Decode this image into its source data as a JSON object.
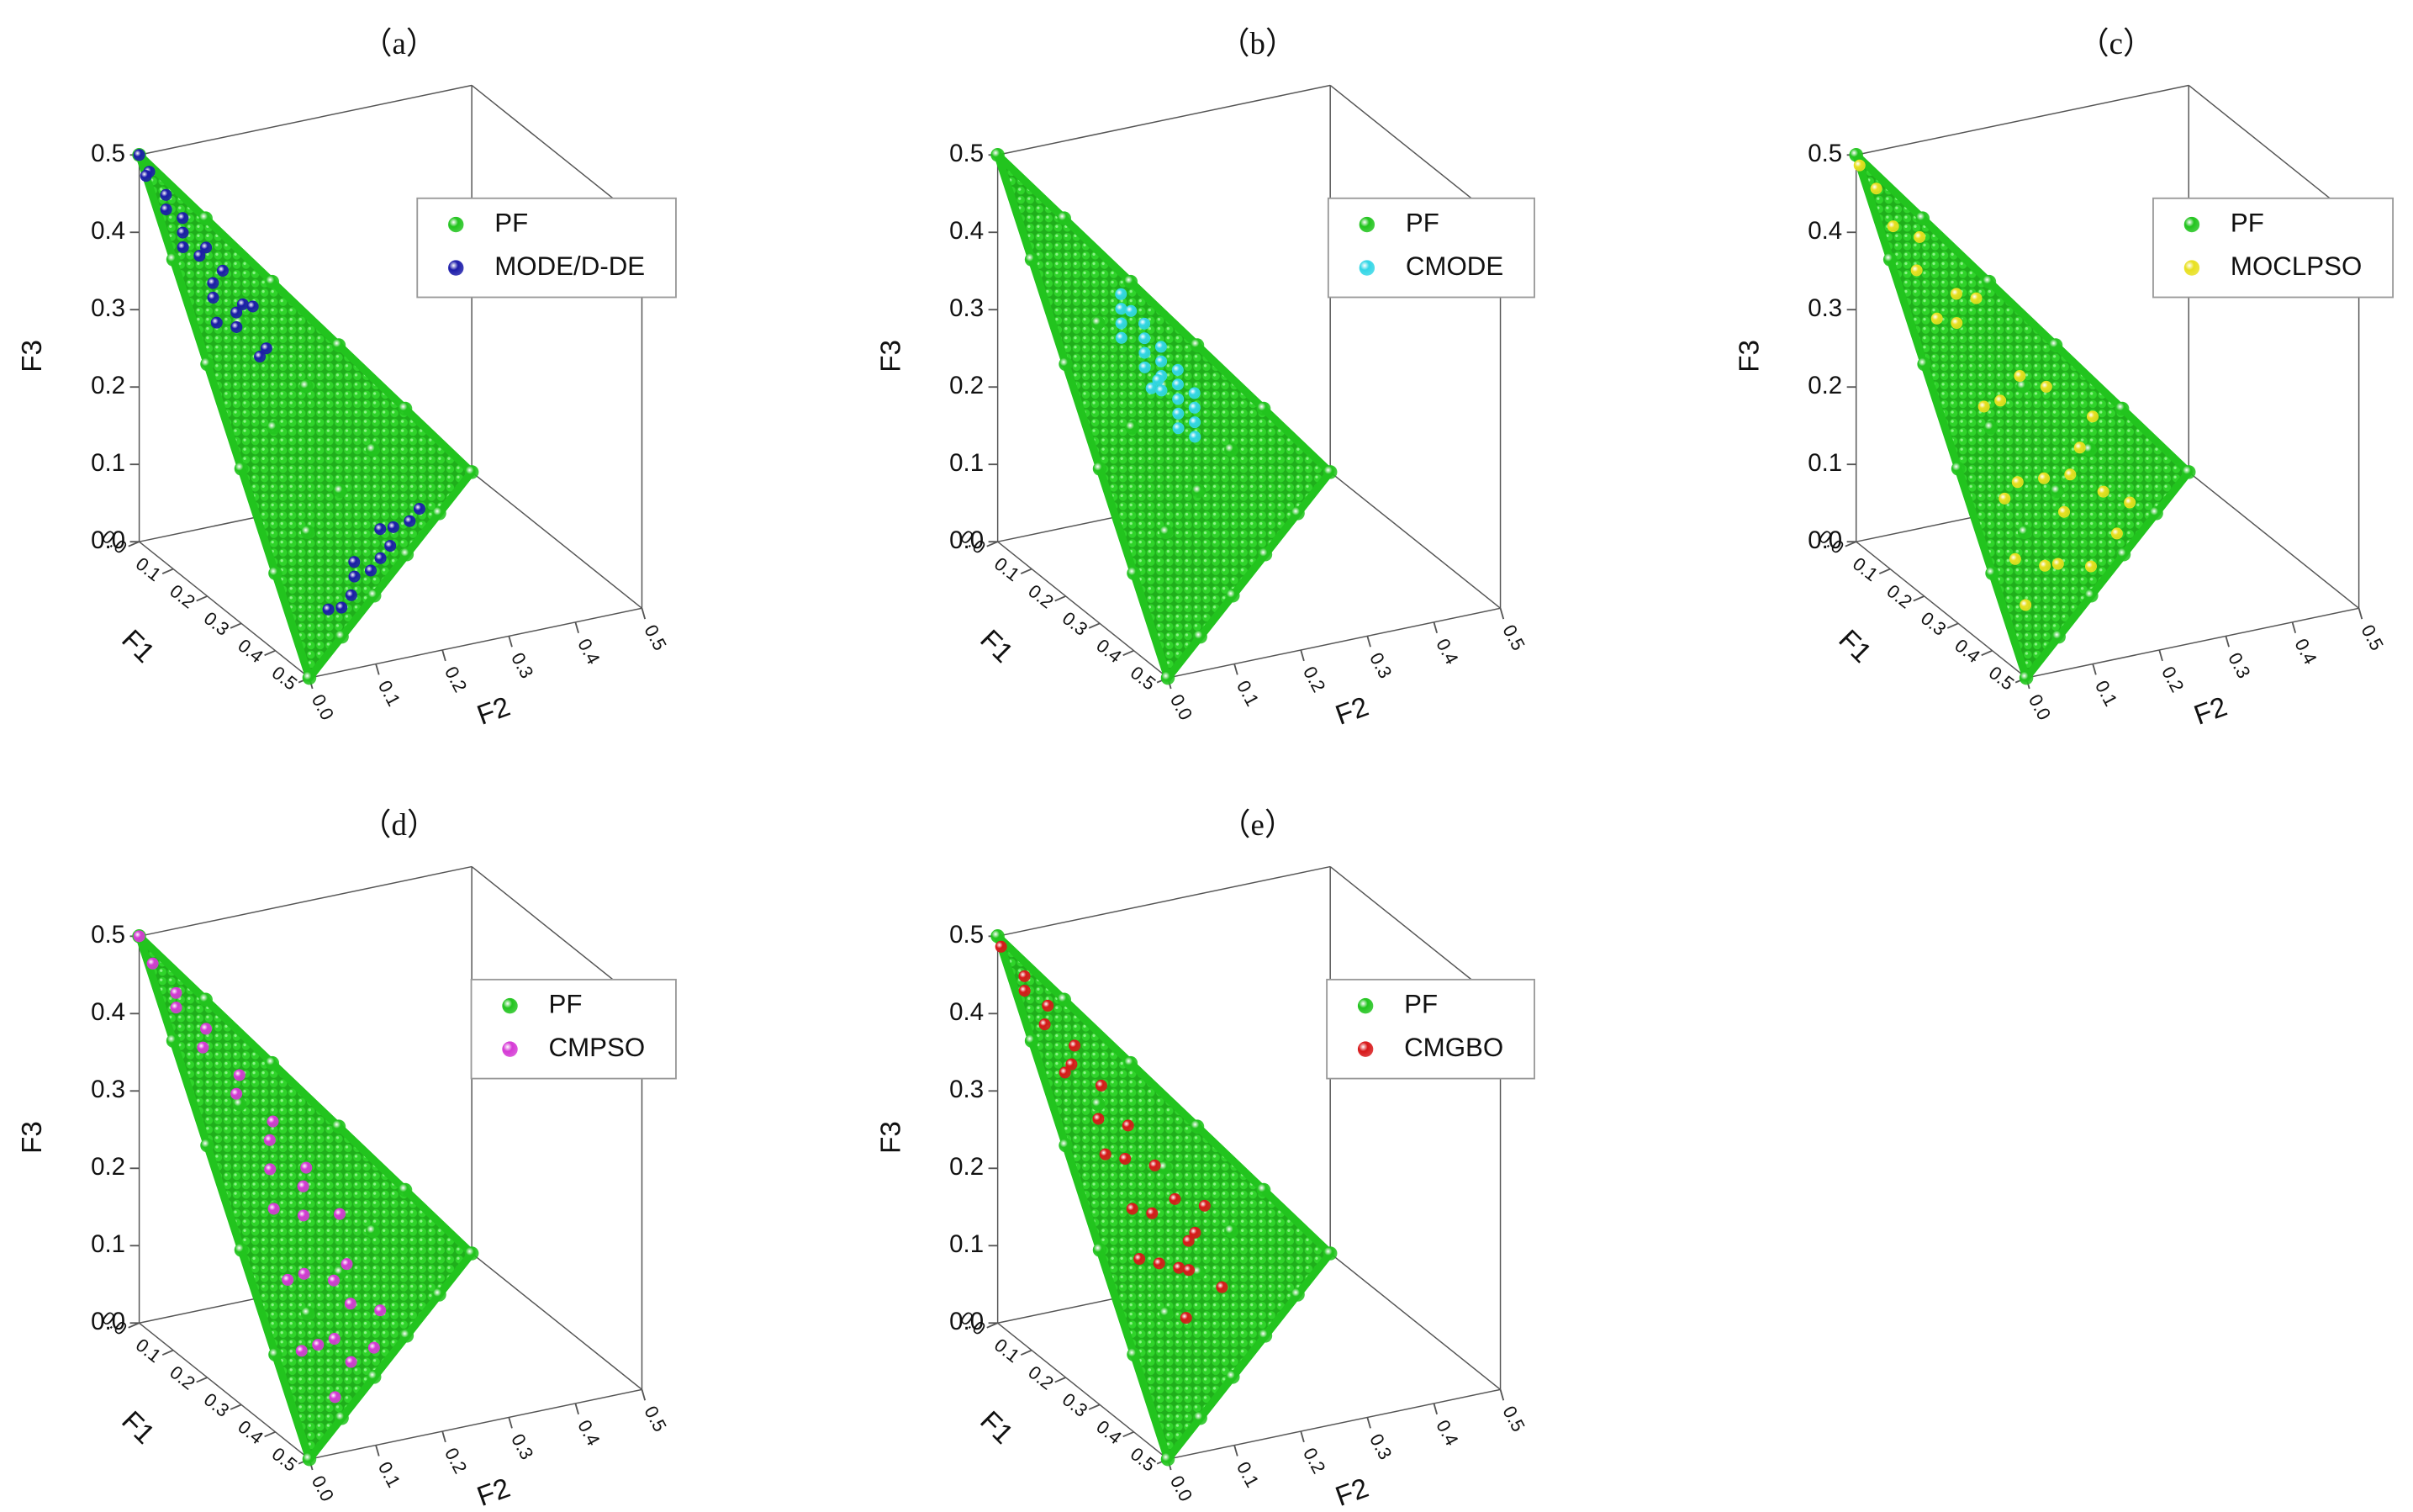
{
  "chart_data": [
    {
      "type": "scatter3d",
      "title": "（a）",
      "xlabel": "F1",
      "ylabel": "F2",
      "zlabel": "F3",
      "xlim": [
        0,
        0.5
      ],
      "ylim": [
        0,
        0.5
      ],
      "zlim": [
        0,
        0.5
      ],
      "xticks": [
        {
          "value": 0,
          "label": "0.0"
        },
        0.1,
        0.2,
        0.3,
        0.4,
        0.5
      ],
      "yticks": [
        {
          "value": 0,
          "label": "0.0"
        },
        0.1,
        0.2,
        0.3,
        0.4,
        0.5
      ],
      "zticks": [
        {
          "value": 0,
          "label": "0.0"
        },
        0.1,
        0.2,
        0.3,
        0.4,
        0.5
      ],
      "legend": "upper right",
      "series": [
        {
          "name": "PF",
          "color": "#22c41e",
          "x": [
            0,
            0,
            0,
            0,
            0,
            0,
            0.1,
            0.1,
            0.1,
            0.1,
            0.1,
            0.2,
            0.2,
            0.2,
            0.2,
            0.3,
            0.3,
            0.3,
            0.4,
            0.4,
            0.5
          ],
          "y": [
            0,
            0.1,
            0.2,
            0.3,
            0.4,
            0.5,
            0,
            0.1,
            0.2,
            0.3,
            0.4,
            0,
            0.1,
            0.2,
            0.3,
            0,
            0.1,
            0.2,
            0,
            0.1,
            0
          ],
          "z": [
            0.5,
            0.4,
            0.3,
            0.2,
            0.1,
            0,
            0.4,
            0.3,
            0.2,
            0.1,
            0,
            0.3,
            0.2,
            0.1,
            0,
            0.2,
            0.1,
            0,
            0.1,
            0,
            0
          ]
        },
        {
          "name": "MODE/D-DE",
          "color": "#1c1caa",
          "x": [
            0,
            0.01,
            0.02,
            0.02,
            0.04,
            0.03,
            0.05,
            0.06,
            0.04,
            0.07,
            0.08,
            0.05,
            0.09,
            0.1,
            0.07,
            0.11,
            0.12,
            0.06,
            0.1,
            0.13,
            0.36,
            0.33,
            0.3,
            0.27,
            0.24,
            0.21,
            0.18,
            0.15,
            0.12,
            0.38,
            0.28,
            0.2
          ],
          "y": [
            0,
            0.01,
            0,
            0.03,
            0.02,
            0.05,
            0.04,
            0.06,
            0.08,
            0.03,
            0.07,
            0.1,
            0.1,
            0.06,
            0.12,
            0.09,
            0.12,
            0.14,
            0.14,
            0.05,
            0.12,
            0.15,
            0.17,
            0.21,
            0.24,
            0.27,
            0.29,
            0.33,
            0.36,
            0.09,
            0.18,
            0.26
          ],
          "z": [
            0.5,
            0.48,
            0.48,
            0.45,
            0.44,
            0.42,
            0.41,
            0.38,
            0.38,
            0.4,
            0.35,
            0.35,
            0.31,
            0.34,
            0.31,
            0.3,
            0.26,
            0.3,
            0.26,
            0.32,
            0.02,
            0.02,
            0.03,
            0.02,
            0.02,
            0.02,
            0.03,
            0.02,
            0.02,
            0.03,
            0.04,
            0.04
          ]
        }
      ]
    },
    {
      "type": "scatter3d",
      "title": "（b）",
      "xlabel": "F1",
      "ylabel": "F2",
      "zlabel": "F3",
      "xlim": [
        0,
        0.5
      ],
      "ylim": [
        0,
        0.5
      ],
      "zlim": [
        0,
        0.5
      ],
      "xticks": [
        {
          "value": 0,
          "label": "0.0"
        },
        0.1,
        0.2,
        0.3,
        0.4,
        0.5
      ],
      "yticks": [
        {
          "value": 0,
          "label": "0.0"
        },
        0.1,
        0.2,
        0.3,
        0.4,
        0.5
      ],
      "zticks": [
        {
          "value": 0,
          "label": "0.0"
        },
        0.1,
        0.2,
        0.3,
        0.4,
        0.5
      ],
      "legend": "upper right",
      "series": [
        {
          "name": "PF",
          "color": "#22c41e",
          "x": [
            0,
            0,
            0,
            0,
            0,
            0,
            0.1,
            0.1,
            0.1,
            0.1,
            0.1,
            0.2,
            0.2,
            0.2,
            0.2,
            0.3,
            0.3,
            0.3,
            0.4,
            0.4,
            0.5
          ],
          "y": [
            0,
            0.1,
            0.2,
            0.3,
            0.4,
            0.5,
            0,
            0.1,
            0.2,
            0.3,
            0.4,
            0,
            0.1,
            0.2,
            0.3,
            0,
            0.1,
            0.2,
            0,
            0.1,
            0
          ],
          "z": [
            0.5,
            0.4,
            0.3,
            0.2,
            0.1,
            0,
            0.4,
            0.3,
            0.2,
            0.1,
            0,
            0.3,
            0.2,
            0.1,
            0,
            0.2,
            0.1,
            0,
            0.1,
            0,
            0
          ]
        },
        {
          "name": "CMODE",
          "color": "#33d6e6",
          "x": [
            0.03,
            0.05,
            0.07,
            0.09,
            0.04,
            0.06,
            0.08,
            0.1,
            0.05,
            0.07,
            0.09,
            0.11,
            0.06,
            0.08,
            0.1,
            0.12,
            0.09,
            0.11,
            0.13,
            0.04,
            0.12,
            0.14,
            0.07,
            0.1
          ],
          "y": [
            0.17,
            0.16,
            0.15,
            0.14,
            0.2,
            0.19,
            0.18,
            0.17,
            0.22,
            0.21,
            0.2,
            0.19,
            0.24,
            0.23,
            0.22,
            0.21,
            0.25,
            0.24,
            0.23,
            0.18,
            0.17,
            0.2,
            0.26,
            0.19
          ],
          "z": [
            0.3,
            0.29,
            0.28,
            0.27,
            0.26,
            0.25,
            0.24,
            0.23,
            0.23,
            0.22,
            0.21,
            0.2,
            0.2,
            0.19,
            0.18,
            0.17,
            0.16,
            0.15,
            0.14,
            0.28,
            0.21,
            0.16,
            0.17,
            0.21
          ]
        }
      ]
    },
    {
      "type": "scatter3d",
      "title": "（c）",
      "xlabel": "F1",
      "ylabel": "F2",
      "zlabel": "F3",
      "xlim": [
        0,
        0.5
      ],
      "ylim": [
        0,
        0.5
      ],
      "zlim": [
        0,
        0.5
      ],
      "xticks": [
        {
          "value": 0,
          "label": "0.0"
        },
        0.1,
        0.2,
        0.3,
        0.4,
        0.5
      ],
      "yticks": [
        {
          "value": 0,
          "label": "0.0"
        },
        0.1,
        0.2,
        0.3,
        0.4,
        0.5
      ],
      "zticks": [
        {
          "value": 0,
          "label": "0.0"
        },
        0.1,
        0.2,
        0.3,
        0.4,
        0.5
      ],
      "legend": "upper right",
      "series": [
        {
          "name": "PF",
          "color": "#22c41e",
          "x": [
            0,
            0,
            0,
            0,
            0,
            0,
            0.1,
            0.1,
            0.1,
            0.1,
            0.1,
            0.2,
            0.2,
            0.2,
            0.2,
            0.3,
            0.3,
            0.3,
            0.4,
            0.4,
            0.5
          ],
          "y": [
            0,
            0.1,
            0.2,
            0.3,
            0.4,
            0.5,
            0,
            0.1,
            0.2,
            0.3,
            0.4,
            0,
            0.1,
            0.2,
            0.3,
            0,
            0.1,
            0.2,
            0,
            0.1,
            0
          ],
          "z": [
            0.5,
            0.4,
            0.3,
            0.2,
            0.1,
            0,
            0.4,
            0.3,
            0.2,
            0.1,
            0,
            0.3,
            0.2,
            0.1,
            0,
            0.2,
            0.1,
            0,
            0.1,
            0,
            0
          ]
        },
        {
          "name": "MOCLPSO",
          "color": "#e8e020",
          "x": [
            0.01,
            0.02,
            0.05,
            0.03,
            0.08,
            0.06,
            0.1,
            0.04,
            0.12,
            0.09,
            0.15,
            0.07,
            0.18,
            0.11,
            0.2,
            0.14,
            0.24,
            0.05,
            0.28,
            0.16,
            0.3,
            0.22,
            0.35,
            0.12,
            0.26,
            0.4,
            0.18,
            0.32
          ],
          "y": [
            0,
            0.02,
            0.03,
            0.08,
            0.05,
            0.12,
            0.1,
            0.16,
            0.06,
            0.2,
            0.14,
            0.25,
            0.1,
            0.28,
            0.18,
            0.3,
            0.12,
            0.33,
            0.08,
            0.24,
            0.15,
            0.2,
            0.06,
            0.35,
            0.22,
            0.05,
            0.3,
            0.12
          ],
          "z": [
            0.49,
            0.46,
            0.42,
            0.39,
            0.37,
            0.32,
            0.3,
            0.3,
            0.32,
            0.21,
            0.21,
            0.18,
            0.22,
            0.11,
            0.12,
            0.06,
            0.14,
            0.12,
            0.14,
            0.1,
            0.05,
            0.08,
            0.09,
            0.03,
            0.02,
            0.05,
            0.02,
            0.06
          ]
        }
      ]
    },
    {
      "type": "scatter3d",
      "title": "（d）",
      "xlabel": "F1",
      "ylabel": "F2",
      "zlabel": "F3",
      "xlim": [
        0,
        0.5
      ],
      "ylim": [
        0,
        0.5
      ],
      "zlim": [
        0,
        0.5
      ],
      "xticks": [
        {
          "value": 0,
          "label": "0.0"
        },
        0.1,
        0.2,
        0.3,
        0.4,
        0.5
      ],
      "yticks": [
        {
          "value": 0,
          "label": "0.0"
        },
        0.1,
        0.2,
        0.3,
        0.4,
        0.5
      ],
      "zticks": [
        {
          "value": 0,
          "label": "0.0"
        },
        0.1,
        0.2,
        0.3,
        0.4,
        0.5
      ],
      "legend": "upper right",
      "series": [
        {
          "name": "PF",
          "color": "#22c41e",
          "x": [
            0,
            0,
            0,
            0,
            0,
            0,
            0.1,
            0.1,
            0.1,
            0.1,
            0.1,
            0.2,
            0.2,
            0.2,
            0.2,
            0.3,
            0.3,
            0.3,
            0.4,
            0.4,
            0.5
          ],
          "y": [
            0,
            0.1,
            0.2,
            0.3,
            0.4,
            0.5,
            0,
            0.1,
            0.2,
            0.3,
            0.4,
            0,
            0.1,
            0.2,
            0.3,
            0,
            0.1,
            0.2,
            0,
            0.1,
            0
          ],
          "z": [
            0.5,
            0.4,
            0.3,
            0.2,
            0.1,
            0,
            0.4,
            0.3,
            0.2,
            0.1,
            0,
            0.3,
            0.2,
            0.1,
            0,
            0.2,
            0.1,
            0,
            0.1,
            0,
            0
          ]
        },
        {
          "name": "CMPSO",
          "color": "#d53ad5",
          "x": [
            0,
            0.02,
            0.03,
            0.05,
            0.04,
            0.07,
            0.06,
            0.09,
            0.08,
            0.11,
            0.1,
            0.13,
            0.15,
            0.12,
            0.17,
            0.2,
            0.18,
            0.22,
            0.25,
            0.23,
            0.28,
            0.3,
            0.26,
            0.33,
            0.36,
            0.38,
            0.31,
            0.2
          ],
          "y": [
            0,
            0.01,
            0.04,
            0.03,
            0.08,
            0.06,
            0.12,
            0.1,
            0.16,
            0.14,
            0.2,
            0.18,
            0.12,
            0.24,
            0.16,
            0.1,
            0.22,
            0.18,
            0.12,
            0.2,
            0.08,
            0.14,
            0.22,
            0.1,
            0.06,
            0.1,
            0.16,
            0.26
          ],
          "z": [
            0.5,
            0.47,
            0.43,
            0.42,
            0.38,
            0.37,
            0.32,
            0.31,
            0.26,
            0.25,
            0.2,
            0.19,
            0.23,
            0.14,
            0.17,
            0.2,
            0.1,
            0.1,
            0.13,
            0.07,
            0.14,
            0.06,
            0.02,
            0.07,
            0.08,
            0.02,
            0.03,
            0.04
          ]
        }
      ]
    },
    {
      "type": "scatter3d",
      "title": "（e）",
      "xlabel": "F1",
      "ylabel": "F2",
      "zlabel": "F3",
      "xlim": [
        0,
        0.5
      ],
      "ylim": [
        0,
        0.5
      ],
      "zlim": [
        0,
        0.5
      ],
      "xticks": [
        {
          "value": 0,
          "label": "0.0"
        },
        0.1,
        0.2,
        0.3,
        0.4,
        0.5
      ],
      "yticks": [
        {
          "value": 0,
          "label": "0.0"
        },
        0.1,
        0.2,
        0.3,
        0.4,
        0.5
      ],
      "zticks": [
        {
          "value": 0,
          "label": "0.0"
        },
        0.1,
        0.2,
        0.3,
        0.4,
        0.5
      ],
      "legend": "upper right",
      "series": [
        {
          "name": "PF",
          "color": "#22c41e",
          "x": [
            0,
            0,
            0,
            0,
            0,
            0,
            0.1,
            0.1,
            0.1,
            0.1,
            0.1,
            0.2,
            0.2,
            0.2,
            0.2,
            0.3,
            0.3,
            0.3,
            0.4,
            0.4,
            0.5
          ],
          "y": [
            0,
            0.1,
            0.2,
            0.3,
            0.4,
            0.5,
            0,
            0.1,
            0.2,
            0.3,
            0.4,
            0,
            0.1,
            0.2,
            0.3,
            0,
            0.1,
            0.2,
            0,
            0.1,
            0
          ],
          "z": [
            0.5,
            0.4,
            0.3,
            0.2,
            0.1,
            0,
            0.4,
            0.3,
            0.2,
            0.1,
            0,
            0.3,
            0.2,
            0.1,
            0,
            0.2,
            0.1,
            0,
            0.1,
            0,
            0
          ]
        },
        {
          "name": "CMGBO",
          "color": "#d8181a",
          "x": [
            0.01,
            0.02,
            0.04,
            0.03,
            0.06,
            0.05,
            0.08,
            0.07,
            0.1,
            0.09,
            0.12,
            0.11,
            0.14,
            0.13,
            0.16,
            0.15,
            0.18,
            0.2,
            0.17,
            0.22,
            0.19,
            0.24,
            0.21,
            0.26,
            0.1,
            0.28
          ],
          "y": [
            0,
            0.03,
            0.02,
            0.06,
            0.04,
            0.09,
            0.07,
            0.12,
            0.05,
            0.15,
            0.09,
            0.18,
            0.12,
            0.2,
            0.08,
            0.22,
            0.14,
            0.1,
            0.2,
            0.16,
            0.24,
            0.12,
            0.18,
            0.08,
            0.26,
            0.14
          ],
          "z": [
            0.49,
            0.45,
            0.44,
            0.41,
            0.4,
            0.36,
            0.35,
            0.31,
            0.35,
            0.26,
            0.29,
            0.21,
            0.24,
            0.17,
            0.26,
            0.13,
            0.18,
            0.2,
            0.13,
            0.12,
            0.07,
            0.14,
            0.11,
            0.16,
            0.14,
            0.08
          ]
        }
      ]
    }
  ]
}
